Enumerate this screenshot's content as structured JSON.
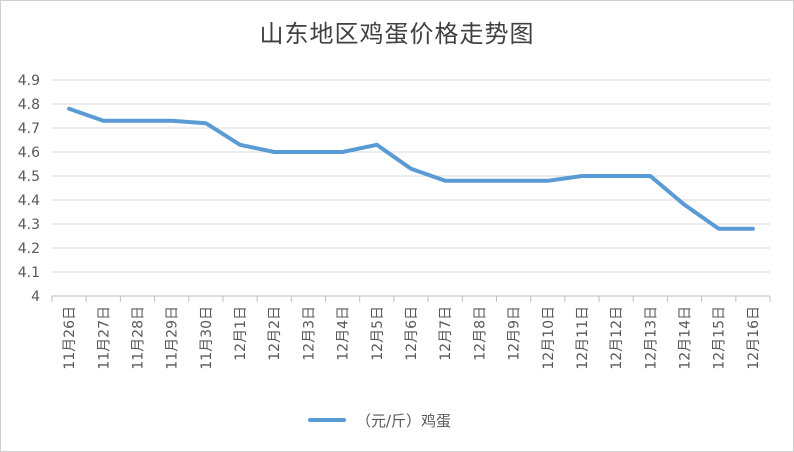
{
  "chart_data": {
    "type": "line",
    "title": "山东地区鸡蛋价格走势图",
    "categories": [
      "11月26日",
      "11月27日",
      "11月28日",
      "11月29日",
      "11月30日",
      "12月1日",
      "12月2日",
      "12月3日",
      "12月4日",
      "12月5日",
      "12月6日",
      "12月7日",
      "12月8日",
      "12月9日",
      "12月10日",
      "12月11日",
      "12月12日",
      "12月13日",
      "12月14日",
      "12月15日",
      "12月16日"
    ],
    "series": [
      {
        "name": "（元/斤）鸡蛋",
        "values": [
          4.78,
          4.73,
          4.73,
          4.73,
          4.72,
          4.63,
          4.6,
          4.6,
          4.6,
          4.63,
          4.53,
          4.48,
          4.48,
          4.48,
          4.48,
          4.5,
          4.5,
          4.5,
          4.38,
          4.28,
          4.28
        ],
        "color": "#5b9bd5"
      }
    ],
    "yticks": [
      "4",
      "4.1",
      "4.2",
      "4.3",
      "4.4",
      "4.5",
      "4.6",
      "4.7",
      "4.8",
      "4.9"
    ],
    "ylim": [
      4,
      4.9
    ],
    "grid": true,
    "legend": "bottom"
  }
}
